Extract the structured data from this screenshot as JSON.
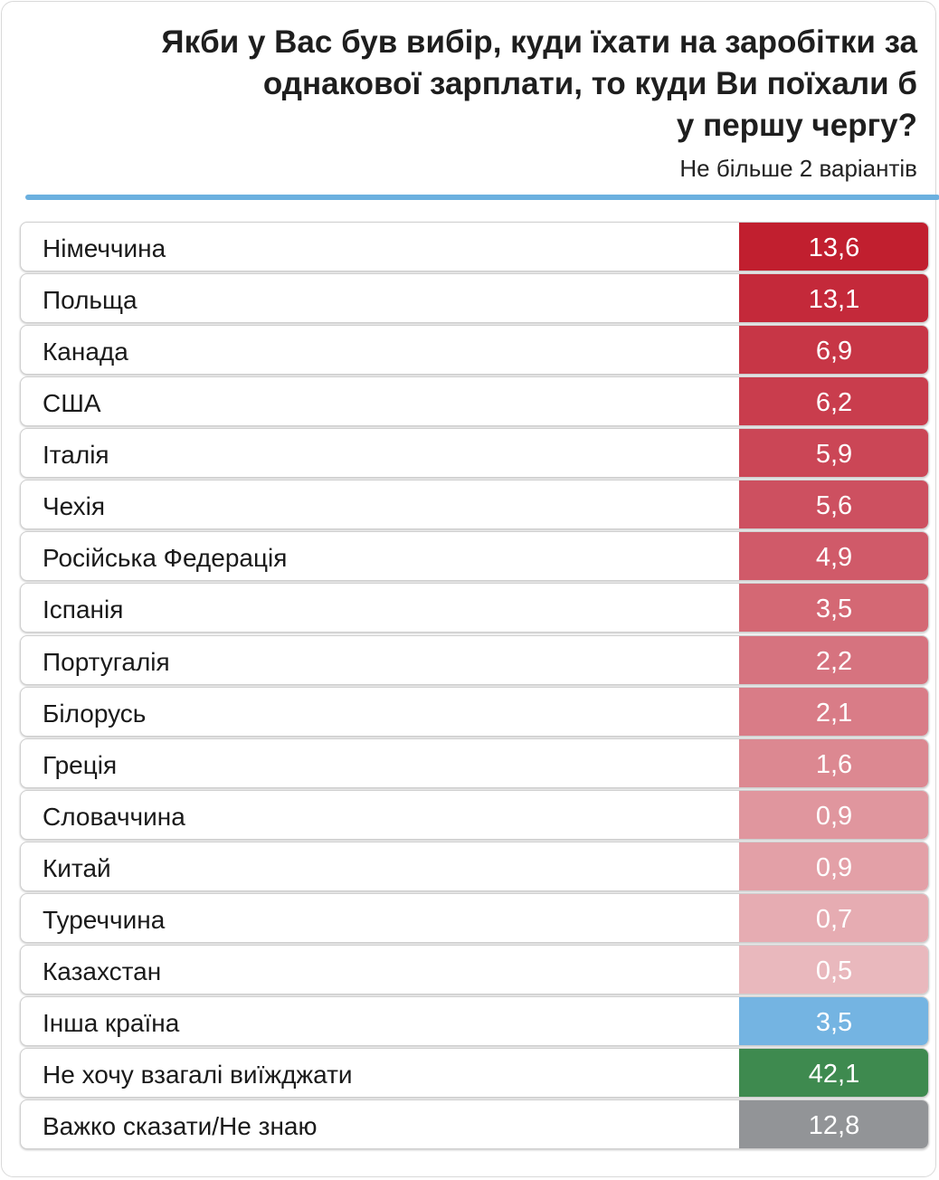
{
  "header": {
    "title_lines": [
      "Якби у Вас був вибір, куди їхати на заробітки за",
      "однакової зарплати, то куди Ви поїхали б",
      "у першу чергу?"
    ],
    "subtitle": "Не більше 2 варіантів"
  },
  "colors": {
    "rule": "#6bb0df",
    "other_country": "#74b4e2",
    "dont_want": "#3e8a4f",
    "hard_to_say": "#929497",
    "country_shades": [
      "#c11f2f",
      "#c4293a",
      "#c73646",
      "#c93d4d",
      "#cb4656",
      "#cd5060",
      "#d05a69",
      "#d46874",
      "#d6737f",
      "#d97c87",
      "#dc8891",
      "#e0969e",
      "#e3a0a7",
      "#e6acb2",
      "#e9b8bd"
    ]
  },
  "chart_data": {
    "type": "table",
    "title": "Якби у Вас був вибір, куди їхати на заробітки за однакової зарплати, то куди Ви поїхали б у першу чергу?",
    "subtitle": "Не більше 2 варіантів",
    "categories": [
      "Німеччина",
      "Польща",
      "Канада",
      "США",
      "Італія",
      "Чехія",
      "Російська Федерація",
      "Іспанія",
      "Португалія",
      "Білорусь",
      "Греція",
      "Словаччина",
      "Китай",
      "Туреччина",
      "Казахстан",
      "Інша країна",
      "Не хочу взагалі виїжджати",
      "Важко сказати/Не знаю"
    ],
    "values": [
      13.6,
      13.1,
      6.9,
      6.2,
      5.9,
      5.6,
      4.9,
      3.5,
      2.2,
      2.1,
      1.6,
      0.9,
      0.9,
      0.7,
      0.5,
      3.5,
      42.1,
      12.8
    ],
    "value_labels": [
      "13,6",
      "13,1",
      "6,9",
      "6,2",
      "5,9",
      "5,6",
      "4,9",
      "3,5",
      "2,2",
      "2,1",
      "1,6",
      "0,9",
      "0,9",
      "0,7",
      "0,5",
      "3,5",
      "42,1",
      "12,8"
    ]
  }
}
